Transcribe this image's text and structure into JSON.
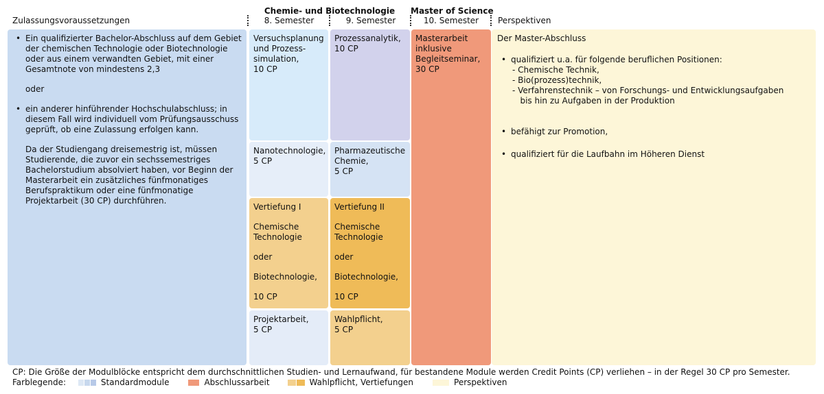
{
  "headers": {
    "zulassung": "Zulassungsvoraussetzungen",
    "program": "Chemie- und Biotechnologie",
    "sem8": "8. Semester",
    "sem9": "9. Semester",
    "degree": "Master of Science",
    "sem10": "10. Semester",
    "perspektiven": "Perspektiven"
  },
  "zulassung": {
    "bullet1": "Ein qualifizierter Bachelor-Abschluss auf dem Gebiet der chemischen Technologie oder Biotechnologie oder aus einem verwandten Gebiet, mit einer Gesamtnote von mindestens 2,3",
    "oder": "oder",
    "bullet2": "ein anderer hinführender Hochschulabschluss; in diesem Fall wird individuell vom Prüfungsausschuss geprüft, ob eine Zulassung erfolgen kann.",
    "note": "Da der Studiengang dreisemestrig ist, müssen Studierende, die zuvor ein sechssemestriges Bachelorstudium absolviert haben, vor Beginn der Masterarbeit ein zusätzliches fünfmonatiges Berufspraktikum oder eine fünfmonatige Projektarbeit (30 CP) durchführen."
  },
  "modules": {
    "versuch": [
      "Versuchsplanung",
      "und Prozess-",
      "simulation,",
      "10 CP"
    ],
    "prozess": [
      "Prozessanalytik,",
      "10 CP"
    ],
    "nano": [
      "Nanotechnologie,",
      "5 CP"
    ],
    "pharma": [
      "Pharmazeutische",
      "Chemie,",
      "5 CP"
    ],
    "vert1": {
      "title": "Vertiefung I",
      "chem": [
        "Chemische",
        "Technologie"
      ],
      "oder": "oder",
      "bio": "Biotechnologie,",
      "cp": "10 CP"
    },
    "vert2": {
      "title": "Vertiefung II",
      "chem": [
        "Chemische",
        "Technologie"
      ],
      "oder": "oder",
      "bio": "Biotechnologie,",
      "cp": "10 CP"
    },
    "projekt": [
      "Projektarbeit,",
      "5 CP"
    ],
    "wahl": [
      "Wahlpflicht,",
      "5 CP"
    ],
    "master": [
      "Masterarbeit",
      "inklusive",
      "Begleitseminar,",
      "30 CP"
    ]
  },
  "perspektiven": {
    "intro": "Der Master-Abschluss",
    "b1": "qualifiziert u.a. für folgende beruflichen Positionen:",
    "b1_items": [
      "- Chemische Technik,",
      "- Bio(prozess)technik,",
      "- Verfahrenstechnik – von Forschungs- und Entwicklungsaufgaben",
      "   bis hin zu Aufgaben in der Produktion"
    ],
    "b2": "befähigt zur Promotion,",
    "b3": "qualifiziert für die Laufbahn im Höheren Dienst"
  },
  "footer": {
    "cp_note": "CP: Die Größe der Modulblöcke entspricht dem durchschnittlichen Studien- und Lernaufwand, für bestandene Module werden Credit Points (CP) verliehen – in der Regel 30 CP pro Semester.",
    "legend_label": "Farblegende:",
    "legend": [
      {
        "label": "Standardmodule",
        "colors": [
          "#dde8f5",
          "#c7d8ee",
          "#b7c9e8"
        ]
      },
      {
        "label": "Abschlussarbeit",
        "colors": [
          "#f0997a"
        ]
      },
      {
        "label": "Wahlpflicht, Vertiefungen",
        "colors": [
          "#f3d08e",
          "#efbb58"
        ]
      },
      {
        "label": "Perspektiven",
        "colors": [
          "#fdf6d8"
        ]
      }
    ]
  },
  "colors": {
    "zulassung_bg": "#c9dbf1",
    "versuch_bg": "#d7ebfa",
    "prozess_bg": "#d2d2ec",
    "nano_bg": "#e6eef9",
    "pharma_bg": "#d5e3f4",
    "vert1_bg": "#f3d08e",
    "vert2_bg": "#efbb58",
    "projekt_bg": "#e4ecf8",
    "wahl_bg": "#f3d08e",
    "master_bg": "#f0997a",
    "perspektiven_bg": "#fdf6d8"
  }
}
